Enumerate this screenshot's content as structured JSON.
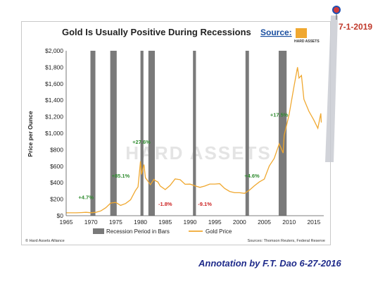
{
  "chart_data": {
    "type": "line",
    "title": "Gold Is Usually Positive During Recessions",
    "source_label": "Source:",
    "source_logo_text": "HARD ASSETS",
    "ylabel": "Price per Ounce",
    "xlabel": "",
    "xlim": [
      1965,
      2017
    ],
    "ylim": [
      0,
      2000
    ],
    "x_ticks": [
      "1965",
      "1970",
      "1975",
      "1980",
      "1985",
      "1990",
      "1995",
      "2000",
      "2005",
      "2010",
      "2015"
    ],
    "y_ticks": [
      "$0",
      "$200",
      "$400",
      "$600",
      "$800",
      "$1,000",
      "$1,200",
      "$1,400",
      "$1,600",
      "$1,800",
      "$2,000"
    ],
    "recessions": [
      [
        1969.9,
        1970.9
      ],
      [
        1973.9,
        1975.2
      ],
      [
        1980.0,
        1980.6
      ],
      [
        1981.6,
        1982.9
      ],
      [
        1990.6,
        1991.2
      ],
      [
        2001.2,
        2001.9
      ],
      [
        2007.9,
        2009.5
      ]
    ],
    "series": [
      {
        "name": "Gold Price",
        "color": "#f0a830",
        "points": [
          [
            1965,
            35
          ],
          [
            1966,
            35
          ],
          [
            1967,
            35
          ],
          [
            1968,
            38
          ],
          [
            1969,
            41
          ],
          [
            1970,
            36
          ],
          [
            1971,
            41
          ],
          [
            1972,
            58
          ],
          [
            1973,
            97
          ],
          [
            1974,
            154
          ],
          [
            1975,
            161
          ],
          [
            1976,
            125
          ],
          [
            1977,
            148
          ],
          [
            1978,
            193
          ],
          [
            1979,
            306
          ],
          [
            1979.5,
            350
          ],
          [
            1980.0,
            660
          ],
          [
            1980.2,
            500
          ],
          [
            1980.7,
            620
          ],
          [
            1981,
            460
          ],
          [
            1981.5,
            420
          ],
          [
            1982,
            376
          ],
          [
            1982.7,
            440
          ],
          [
            1983,
            424
          ],
          [
            1983.5,
            410
          ],
          [
            1984,
            360
          ],
          [
            1985,
            317
          ],
          [
            1986,
            368
          ],
          [
            1987,
            446
          ],
          [
            1988,
            437
          ],
          [
            1989,
            381
          ],
          [
            1990,
            383
          ],
          [
            1991,
            362
          ],
          [
            1992,
            344
          ],
          [
            1993,
            360
          ],
          [
            1994,
            384
          ],
          [
            1995,
            384
          ],
          [
            1996,
            388
          ],
          [
            1997,
            331
          ],
          [
            1998,
            294
          ],
          [
            1999,
            279
          ],
          [
            2000,
            279
          ],
          [
            2001,
            271
          ],
          [
            2002,
            310
          ],
          [
            2003,
            363
          ],
          [
            2004,
            409
          ],
          [
            2005,
            444
          ],
          [
            2006,
            603
          ],
          [
            2007,
            695
          ],
          [
            2008,
            872
          ],
          [
            2008.8,
            760
          ],
          [
            2009,
            972
          ],
          [
            2010,
            1224
          ],
          [
            2011,
            1571
          ],
          [
            2011.7,
            1800
          ],
          [
            2012,
            1669
          ],
          [
            2012.5,
            1700
          ],
          [
            2013,
            1411
          ],
          [
            2014,
            1266
          ],
          [
            2015,
            1160
          ],
          [
            2015.8,
            1060
          ],
          [
            2016.4,
            1240
          ],
          [
            2016.5,
            1130
          ]
        ]
      }
    ],
    "annotations": [
      {
        "text": "+4.7%",
        "sign": "pos",
        "x": 1969.0,
        "y": 200
      },
      {
        "text": "+85.1%",
        "sign": "pos",
        "x": 1976.0,
        "y": 460
      },
      {
        "text": "+27.6%",
        "sign": "pos",
        "x": 1980.2,
        "y": 870
      },
      {
        "text": "-1.8%",
        "sign": "neg",
        "x": 1985.0,
        "y": 120
      },
      {
        "text": "-9.1%",
        "sign": "neg",
        "x": 1993.0,
        "y": 120
      },
      {
        "text": "+4.6%",
        "sign": "pos",
        "x": 2002.5,
        "y": 460
      },
      {
        "text": "+17.5%",
        "sign": "pos",
        "x": 2008.0,
        "y": 1200
      }
    ],
    "legend": [
      {
        "label": "Recession Period in Bars",
        "color": "#7a7a7a"
      },
      {
        "label": "Gold Price",
        "color": "#f0a830"
      }
    ],
    "legend_placement": "bottom",
    "grid": false,
    "watermark": "HARD ASSETS",
    "footer_left": "© Hard Assets Alliance",
    "footer_right": "Sources: Thomson Reuters, Federal Reserve"
  },
  "overlay": {
    "date_label": "7-1-2019",
    "credit": "Annotation by F.T. Dao  6-27-2016"
  },
  "colors": {
    "gold": "#f0a830",
    "recession": "#7a7a7a",
    "positive": "#2e8b2e",
    "negative": "#cc2222",
    "credit": "#1e2a8a",
    "date": "#c0392b"
  }
}
